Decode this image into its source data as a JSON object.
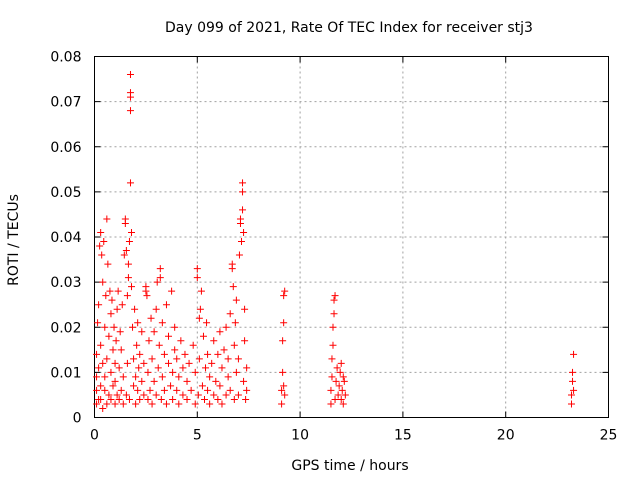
{
  "chart_data": {
    "type": "scatter",
    "title": "Day 099 of 2021, Rate Of TEC Index for receiver stj3",
    "xlabel": "GPS time / hours",
    "ylabel": "ROTI / TECUs",
    "xlim": [
      0,
      25
    ],
    "ylim": [
      0,
      0.08
    ],
    "x_ticks": [
      0,
      5,
      10,
      15,
      20,
      25
    ],
    "y_ticks": [
      0,
      0.01,
      0.02,
      0.03,
      0.04,
      0.05,
      0.06,
      0.07,
      0.08
    ],
    "x_tick_labels": [
      "0",
      "5",
      "10",
      "15",
      "20",
      "25"
    ],
    "y_tick_labels": [
      "0",
      "0.01",
      "0.02",
      "0.03",
      "0.04",
      "0.05",
      "0.06",
      "0.07",
      "0.08"
    ],
    "grid": true,
    "marker": "+",
    "series": [
      {
        "name": "ROTI",
        "color": "#ff0000",
        "points": [
          [
            0.1,
            0.003
          ],
          [
            0.1,
            0.006
          ],
          [
            0.1,
            0.009
          ],
          [
            0.1,
            0.014
          ],
          [
            0.15,
            0.021
          ],
          [
            0.2,
            0.004
          ],
          [
            0.2,
            0.011
          ],
          [
            0.2,
            0.025
          ],
          [
            0.25,
            0.038
          ],
          [
            0.3,
            0.004
          ],
          [
            0.3,
            0.007
          ],
          [
            0.3,
            0.016
          ],
          [
            0.3,
            0.041
          ],
          [
            0.35,
            0.036
          ],
          [
            0.4,
            0.002
          ],
          [
            0.4,
            0.012
          ],
          [
            0.4,
            0.03
          ],
          [
            0.45,
            0.039
          ],
          [
            0.5,
            0.006
          ],
          [
            0.5,
            0.009
          ],
          [
            0.5,
            0.02
          ],
          [
            0.55,
            0.027
          ],
          [
            0.6,
            0.003
          ],
          [
            0.6,
            0.013
          ],
          [
            0.6,
            0.044
          ],
          [
            0.65,
            0.034
          ],
          [
            0.7,
            0.005
          ],
          [
            0.7,
            0.018
          ],
          [
            0.75,
            0.028
          ],
          [
            0.8,
            0.004
          ],
          [
            0.8,
            0.01
          ],
          [
            0.8,
            0.023
          ],
          [
            0.85,
            0.026
          ],
          [
            0.9,
            0.007
          ],
          [
            0.9,
            0.015
          ],
          [
            0.95,
            0.02
          ],
          [
            1.0,
            0.003
          ],
          [
            1.0,
            0.008
          ],
          [
            1.0,
            0.012
          ],
          [
            1.05,
            0.017
          ],
          [
            1.1,
            0.005
          ],
          [
            1.1,
            0.024
          ],
          [
            1.15,
            0.028
          ],
          [
            1.2,
            0.004
          ],
          [
            1.2,
            0.011
          ],
          [
            1.25,
            0.019
          ],
          [
            1.3,
            0.006
          ],
          [
            1.3,
            0.015
          ],
          [
            1.35,
            0.025
          ],
          [
            1.4,
            0.003
          ],
          [
            1.4,
            0.009
          ],
          [
            1.45,
            0.036
          ],
          [
            1.5,
            0.044
          ],
          [
            1.5,
            0.043
          ],
          [
            1.55,
            0.037
          ],
          [
            1.55,
            0.005
          ],
          [
            1.6,
            0.012
          ],
          [
            1.6,
            0.027
          ],
          [
            1.65,
            0.031
          ],
          [
            1.65,
            0.034
          ],
          [
            1.7,
            0.039
          ],
          [
            1.7,
            0.004
          ],
          [
            1.75,
            0.052
          ],
          [
            1.75,
            0.076
          ],
          [
            1.75,
            0.072
          ],
          [
            1.75,
            0.071
          ],
          [
            1.75,
            0.068
          ],
          [
            1.8,
            0.041
          ],
          [
            1.8,
            0.029
          ],
          [
            1.85,
            0.02
          ],
          [
            1.9,
            0.007
          ],
          [
            1.9,
            0.013
          ],
          [
            1.95,
            0.024
          ],
          [
            2.0,
            0.003
          ],
          [
            2.0,
            0.009
          ],
          [
            2.05,
            0.016
          ],
          [
            2.1,
            0.006
          ],
          [
            2.1,
            0.021
          ],
          [
            2.15,
            0.011
          ],
          [
            2.2,
            0.004
          ],
          [
            2.2,
            0.014
          ],
          [
            2.3,
            0.008
          ],
          [
            2.3,
            0.019
          ],
          [
            2.4,
            0.005
          ],
          [
            2.4,
            0.012
          ],
          [
            2.5,
            0.028
          ],
          [
            2.5,
            0.029
          ],
          [
            2.55,
            0.027
          ],
          [
            2.6,
            0.004
          ],
          [
            2.6,
            0.01
          ],
          [
            2.65,
            0.017
          ],
          [
            2.7,
            0.006
          ],
          [
            2.75,
            0.022
          ],
          [
            2.8,
            0.003
          ],
          [
            2.8,
            0.013
          ],
          [
            2.9,
            0.008
          ],
          [
            2.9,
            0.019
          ],
          [
            3.0,
            0.005
          ],
          [
            3.0,
            0.024
          ],
          [
            3.05,
            0.03
          ],
          [
            3.1,
            0.011
          ],
          [
            3.15,
            0.016
          ],
          [
            3.2,
            0.033
          ],
          [
            3.2,
            0.031
          ],
          [
            3.25,
            0.004
          ],
          [
            3.3,
            0.009
          ],
          [
            3.3,
            0.021
          ],
          [
            3.4,
            0.006
          ],
          [
            3.4,
            0.014
          ],
          [
            3.5,
            0.025
          ],
          [
            3.5,
            0.003
          ],
          [
            3.6,
            0.012
          ],
          [
            3.6,
            0.018
          ],
          [
            3.7,
            0.007
          ],
          [
            3.75,
            0.028
          ],
          [
            3.8,
            0.004
          ],
          [
            3.8,
            0.01
          ],
          [
            3.9,
            0.015
          ],
          [
            3.9,
            0.02
          ],
          [
            4.0,
            0.006
          ],
          [
            4.0,
            0.013
          ],
          [
            4.1,
            0.003
          ],
          [
            4.1,
            0.009
          ],
          [
            4.2,
            0.017
          ],
          [
            4.3,
            0.005
          ],
          [
            4.3,
            0.011
          ],
          [
            4.4,
            0.014
          ],
          [
            4.5,
            0.004
          ],
          [
            4.5,
            0.008
          ],
          [
            4.6,
            0.012
          ],
          [
            4.7,
            0.006
          ],
          [
            4.8,
            0.016
          ],
          [
            4.9,
            0.003
          ],
          [
            4.9,
            0.01
          ],
          [
            5.0,
            0.033
          ],
          [
            5.0,
            0.031
          ],
          [
            5.05,
            0.005
          ],
          [
            5.1,
            0.022
          ],
          [
            5.1,
            0.013
          ],
          [
            5.15,
            0.024
          ],
          [
            5.2,
            0.028
          ],
          [
            5.25,
            0.007
          ],
          [
            5.3,
            0.018
          ],
          [
            5.35,
            0.004
          ],
          [
            5.4,
            0.011
          ],
          [
            5.45,
            0.021
          ],
          [
            5.5,
            0.006
          ],
          [
            5.5,
            0.014
          ],
          [
            5.6,
            0.003
          ],
          [
            5.6,
            0.009
          ],
          [
            5.7,
            0.012
          ],
          [
            5.8,
            0.005
          ],
          [
            5.8,
            0.017
          ],
          [
            5.9,
            0.008
          ],
          [
            6.0,
            0.004
          ],
          [
            6.0,
            0.014
          ],
          [
            6.1,
            0.007
          ],
          [
            6.1,
            0.019
          ],
          [
            6.2,
            0.003
          ],
          [
            6.2,
            0.011
          ],
          [
            6.3,
            0.015
          ],
          [
            6.4,
            0.005
          ],
          [
            6.4,
            0.02
          ],
          [
            6.5,
            0.009
          ],
          [
            6.5,
            0.013
          ],
          [
            6.6,
            0.006
          ],
          [
            6.6,
            0.023
          ],
          [
            6.7,
            0.033
          ],
          [
            6.7,
            0.034
          ],
          [
            6.75,
            0.029
          ],
          [
            6.8,
            0.004
          ],
          [
            6.8,
            0.016
          ],
          [
            6.85,
            0.021
          ],
          [
            6.9,
            0.01
          ],
          [
            6.9,
            0.026
          ],
          [
            7.0,
            0.005
          ],
          [
            7.0,
            0.013
          ],
          [
            7.05,
            0.036
          ],
          [
            7.1,
            0.043
          ],
          [
            7.1,
            0.044
          ],
          [
            7.15,
            0.039
          ],
          [
            7.2,
            0.05
          ],
          [
            7.2,
            0.052
          ],
          [
            7.2,
            0.046
          ],
          [
            7.25,
            0.041
          ],
          [
            7.25,
            0.008
          ],
          [
            7.3,
            0.017
          ],
          [
            7.3,
            0.024
          ],
          [
            7.35,
            0.004
          ],
          [
            7.4,
            0.011
          ],
          [
            7.4,
            0.006
          ],
          [
            9.1,
            0.003
          ],
          [
            9.1,
            0.006
          ],
          [
            9.15,
            0.01
          ],
          [
            9.15,
            0.017
          ],
          [
            9.2,
            0.021
          ],
          [
            9.2,
            0.027
          ],
          [
            9.25,
            0.028
          ],
          [
            9.25,
            0.005
          ],
          [
            9.2,
            0.007
          ],
          [
            11.5,
            0.003
          ],
          [
            11.5,
            0.006
          ],
          [
            11.55,
            0.009
          ],
          [
            11.55,
            0.013
          ],
          [
            11.6,
            0.016
          ],
          [
            11.6,
            0.02
          ],
          [
            11.65,
            0.023
          ],
          [
            11.65,
            0.026
          ],
          [
            11.7,
            0.027
          ],
          [
            11.7,
            0.004
          ],
          [
            11.75,
            0.008
          ],
          [
            11.8,
            0.011
          ],
          [
            11.85,
            0.005
          ],
          [
            11.9,
            0.007
          ],
          [
            11.95,
            0.01
          ],
          [
            12.0,
            0.004
          ],
          [
            12.0,
            0.012
          ],
          [
            12.05,
            0.006
          ],
          [
            12.1,
            0.009
          ],
          [
            12.1,
            0.003
          ],
          [
            12.15,
            0.008
          ],
          [
            12.2,
            0.005
          ],
          [
            23.2,
            0.003
          ],
          [
            23.2,
            0.005
          ],
          [
            23.25,
            0.008
          ],
          [
            23.25,
            0.01
          ],
          [
            23.3,
            0.006
          ],
          [
            23.3,
            0.014
          ]
        ]
      }
    ]
  }
}
